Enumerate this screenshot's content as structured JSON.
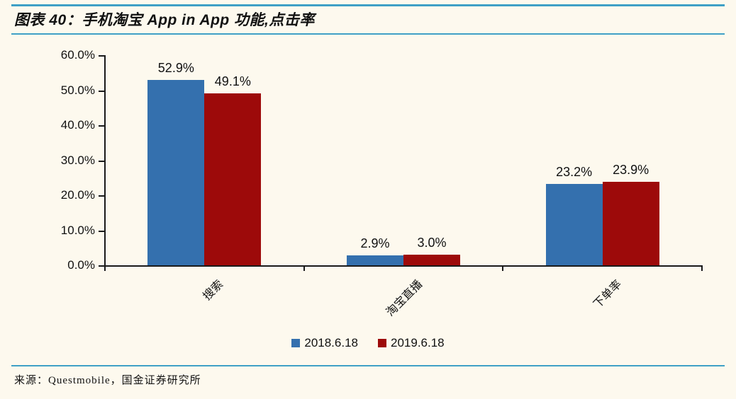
{
  "header": {
    "title": "图表 40：手机淘宝 App in App 功能,点击率"
  },
  "footer": {
    "source": "来源：Questmobile，国金证券研究所"
  },
  "colors": {
    "background": "#FDF9EE",
    "rule": "#3FA0C6",
    "axis": "#1A1A1A",
    "text": "#111111",
    "series_2018": "#3470AE",
    "series_2019": "#9D0A0A"
  },
  "chart_data": {
    "type": "bar",
    "title": "手机淘宝 App in App 功能点击率",
    "categories": [
      "搜索",
      "淘宝直播",
      "下单率"
    ],
    "series": [
      {
        "name": "2018.6.18",
        "color": "#3470AE",
        "values": [
          52.9,
          2.9,
          23.2
        ],
        "labels": [
          "52.9%",
          "2.9%",
          "23.2%"
        ]
      },
      {
        "name": "2019.6.18",
        "color": "#9D0A0A",
        "values": [
          49.1,
          3.0,
          23.9
        ],
        "labels": [
          "49.1%",
          "3.0%",
          "23.9%"
        ]
      }
    ],
    "xlabel": "",
    "ylabel": "",
    "ylim": [
      0,
      60
    ],
    "yticks": [
      {
        "value": 0,
        "label": "0.0%"
      },
      {
        "value": 10,
        "label": "10.0%"
      },
      {
        "value": 20,
        "label": "20.0%"
      },
      {
        "value": 30,
        "label": "30.0%"
      },
      {
        "value": 40,
        "label": "40.0%"
      },
      {
        "value": 50,
        "label": "50.0%"
      },
      {
        "value": 60,
        "label": "60.0%"
      }
    ],
    "grid": false,
    "legend_position": "bottom"
  }
}
